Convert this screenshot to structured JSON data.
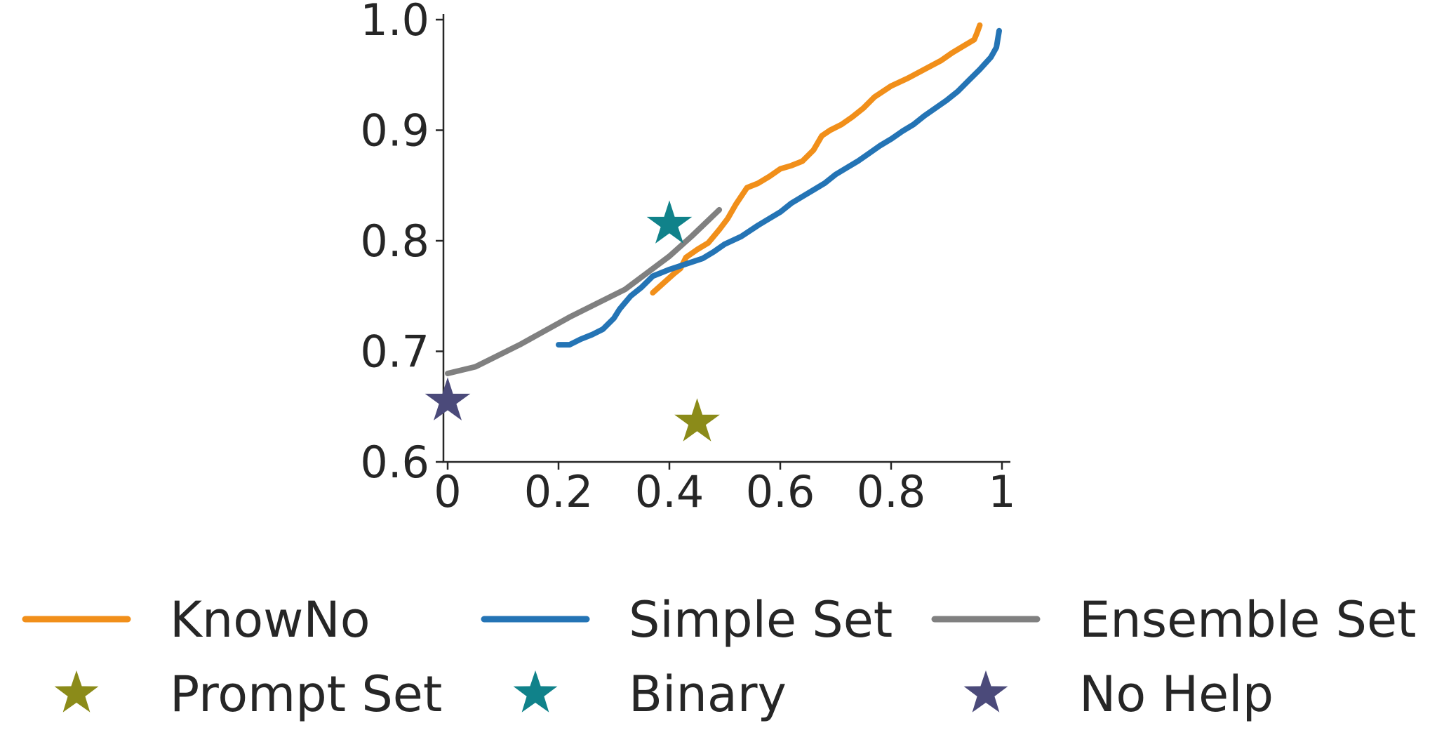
{
  "chart_data": {
    "type": "line",
    "title": "",
    "xlabel": "",
    "ylabel": "",
    "xlim": [
      0,
      1
    ],
    "ylim": [
      0.6,
      1.0
    ],
    "x_ticks": [
      {
        "value": 0,
        "label": "0"
      },
      {
        "value": 0.2,
        "label": "0.2"
      },
      {
        "value": 0.4,
        "label": "0.4"
      },
      {
        "value": 0.6,
        "label": "0.6"
      },
      {
        "value": 0.8,
        "label": "0.8"
      },
      {
        "value": 1.0,
        "label": "1"
      }
    ],
    "y_ticks": [
      {
        "value": 0.6,
        "label": "0.6"
      },
      {
        "value": 0.7,
        "label": "0.7"
      },
      {
        "value": 0.8,
        "label": "0.8"
      },
      {
        "value": 0.9,
        "label": "0.9"
      },
      {
        "value": 1.0,
        "label": "1.0"
      }
    ],
    "grid": false,
    "legend_position": "bottom",
    "series": [
      {
        "name": "KnowNo",
        "kind": "line",
        "color": "#f18f1a",
        "points": [
          [
            0.37,
            0.753
          ],
          [
            0.39,
            0.762
          ],
          [
            0.41,
            0.771
          ],
          [
            0.42,
            0.775
          ],
          [
            0.43,
            0.785
          ],
          [
            0.45,
            0.792
          ],
          [
            0.47,
            0.798
          ],
          [
            0.48,
            0.804
          ],
          [
            0.49,
            0.81
          ],
          [
            0.505,
            0.82
          ],
          [
            0.52,
            0.833
          ],
          [
            0.54,
            0.848
          ],
          [
            0.56,
            0.852
          ],
          [
            0.58,
            0.858
          ],
          [
            0.6,
            0.865
          ],
          [
            0.62,
            0.868
          ],
          [
            0.64,
            0.872
          ],
          [
            0.66,
            0.882
          ],
          [
            0.675,
            0.895
          ],
          [
            0.69,
            0.9
          ],
          [
            0.71,
            0.905
          ],
          [
            0.73,
            0.912
          ],
          [
            0.75,
            0.92
          ],
          [
            0.77,
            0.93
          ],
          [
            0.8,
            0.94
          ],
          [
            0.83,
            0.947
          ],
          [
            0.86,
            0.955
          ],
          [
            0.89,
            0.963
          ],
          [
            0.91,
            0.97
          ],
          [
            0.93,
            0.976
          ],
          [
            0.95,
            0.982
          ],
          [
            0.955,
            0.988
          ],
          [
            0.96,
            0.995
          ]
        ]
      },
      {
        "name": "Simple Set",
        "kind": "line",
        "color": "#2474b5",
        "points": [
          [
            0.2,
            0.706
          ],
          [
            0.22,
            0.706
          ],
          [
            0.24,
            0.711
          ],
          [
            0.26,
            0.715
          ],
          [
            0.28,
            0.72
          ],
          [
            0.3,
            0.73
          ],
          [
            0.31,
            0.738
          ],
          [
            0.33,
            0.75
          ],
          [
            0.35,
            0.758
          ],
          [
            0.37,
            0.768
          ],
          [
            0.4,
            0.774
          ],
          [
            0.43,
            0.779
          ],
          [
            0.46,
            0.784
          ],
          [
            0.48,
            0.79
          ],
          [
            0.5,
            0.797
          ],
          [
            0.53,
            0.804
          ],
          [
            0.56,
            0.814
          ],
          [
            0.58,
            0.82
          ],
          [
            0.6,
            0.826
          ],
          [
            0.62,
            0.834
          ],
          [
            0.64,
            0.84
          ],
          [
            0.66,
            0.846
          ],
          [
            0.68,
            0.852
          ],
          [
            0.7,
            0.86
          ],
          [
            0.72,
            0.866
          ],
          [
            0.74,
            0.872
          ],
          [
            0.76,
            0.879
          ],
          [
            0.78,
            0.886
          ],
          [
            0.8,
            0.892
          ],
          [
            0.82,
            0.899
          ],
          [
            0.84,
            0.905
          ],
          [
            0.86,
            0.913
          ],
          [
            0.88,
            0.92
          ],
          [
            0.9,
            0.927
          ],
          [
            0.92,
            0.935
          ],
          [
            0.94,
            0.945
          ],
          [
            0.96,
            0.955
          ],
          [
            0.98,
            0.966
          ],
          [
            0.99,
            0.975
          ],
          [
            0.995,
            0.99
          ]
        ]
      },
      {
        "name": "Ensemble Set",
        "kind": "line",
        "color": "#808080",
        "points": [
          [
            0.0,
            0.68
          ],
          [
            0.05,
            0.686
          ],
          [
            0.13,
            0.706
          ],
          [
            0.22,
            0.731
          ],
          [
            0.32,
            0.756
          ],
          [
            0.4,
            0.786
          ],
          [
            0.44,
            0.804
          ],
          [
            0.49,
            0.828
          ]
        ]
      },
      {
        "name": "Prompt Set",
        "kind": "star",
        "color": "#8b8b19",
        "points": [
          [
            0.45,
            0.636
          ]
        ]
      },
      {
        "name": "Binary",
        "kind": "star",
        "color": "#10828a",
        "points": [
          [
            0.4,
            0.815
          ]
        ]
      },
      {
        "name": "No Help",
        "kind": "star",
        "color": "#4b4a7a",
        "points": [
          [
            0.0,
            0.655
          ]
        ]
      }
    ]
  }
}
